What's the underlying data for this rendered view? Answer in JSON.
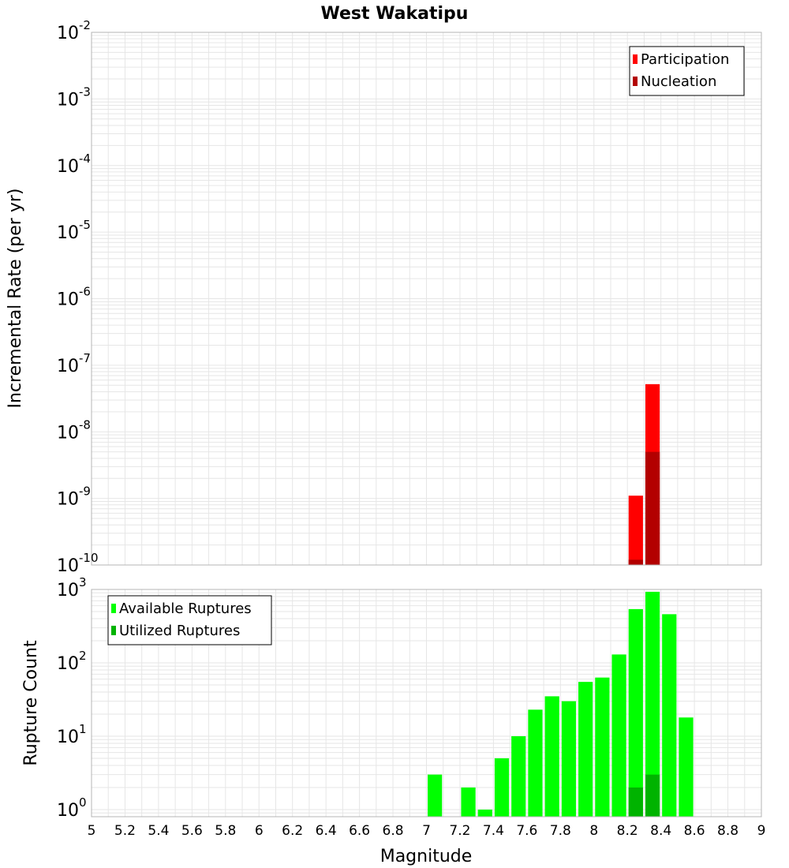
{
  "title": "West Wakatipu",
  "xlabel": "Magnitude",
  "colors": {
    "participation": "#ff0000",
    "nucleation": "#b30000",
    "available": "#00ff00",
    "utilized": "#00b300",
    "grid": "#e6e6e6",
    "frame": "#b4b4b4"
  },
  "x_ticks": [
    "5",
    "5.2",
    "5.4",
    "5.6",
    "5.8",
    "6",
    "6.2",
    "6.4",
    "6.6",
    "6.8",
    "7",
    "7.2",
    "7.4",
    "7.6",
    "7.8",
    "8",
    "8.2",
    "8.4",
    "8.6",
    "8.8",
    "9"
  ],
  "chart_data": [
    {
      "type": "bar",
      "ylabel": "Incremental Rate (per yr)",
      "x_range": [
        5,
        9
      ],
      "y_scale": "log",
      "y_range": [
        1e-10,
        0.01
      ],
      "y_tick_base": "10",
      "y_tick_exponents": [
        "-10",
        "-9",
        "-8",
        "-7",
        "-6",
        "-5",
        "-4",
        "-3",
        "-2"
      ],
      "grid": true,
      "legend_placement": "top-right",
      "bar_width": 0.1,
      "series": [
        {
          "name": "Participation",
          "x": [
            8.25,
            8.35
          ],
          "values": [
            1.1e-09,
            5.2e-08
          ]
        },
        {
          "name": "Nucleation",
          "x": [
            8.25,
            8.35
          ],
          "values": [
            1.2e-10,
            5e-09
          ]
        }
      ]
    },
    {
      "type": "bar",
      "ylabel": "Rupture Count",
      "x_range": [
        5,
        9
      ],
      "y_scale": "log",
      "y_range": [
        0.8,
        1000
      ],
      "y_tick_base": "10",
      "y_tick_exponents": [
        "0",
        "1",
        "2",
        "3"
      ],
      "grid": true,
      "legend_placement": "top-left",
      "bar_width": 0.1,
      "series": [
        {
          "name": "Available Ruptures",
          "x": [
            7.05,
            7.25,
            7.35,
            7.45,
            7.55,
            7.65,
            7.75,
            7.85,
            7.95,
            8.05,
            8.15,
            8.25,
            8.35,
            8.45,
            8.55
          ],
          "values": [
            3,
            2,
            1,
            5,
            10,
            23,
            35,
            30,
            55,
            63,
            130,
            540,
            930,
            460,
            18
          ]
        },
        {
          "name": "Utilized Ruptures",
          "x": [
            8.25,
            8.35
          ],
          "values": [
            2,
            3
          ]
        }
      ]
    }
  ]
}
